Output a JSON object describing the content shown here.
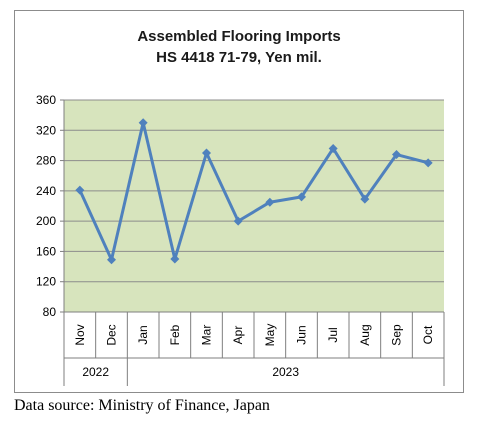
{
  "chart_data": {
    "type": "line",
    "title_lines": [
      "Assembled Flooring Imports",
      "HS 4418 71-79, Yen mil."
    ],
    "categories": [
      "Nov",
      "Dec",
      "Jan",
      "Feb",
      "Mar",
      "Apr",
      "May",
      "Jun",
      "Jul",
      "Aug",
      "Sep",
      "Oct"
    ],
    "year_groups": [
      {
        "label": "2022",
        "count": 2
      },
      {
        "label": "2023",
        "count": 10
      }
    ],
    "series": [
      {
        "values": [
          241,
          149,
          330,
          150,
          290,
          200,
          225,
          232,
          296,
          229,
          288,
          277
        ]
      }
    ],
    "ylim": [
      80,
      360
    ],
    "yticks": [
      80,
      120,
      160,
      200,
      240,
      280,
      320,
      360
    ],
    "grid": true,
    "legend": "none",
    "colors": {
      "line": "#4f81bd",
      "plot_background": "#d7e4bd",
      "grid": "#8c8c8c"
    }
  },
  "footer": {
    "source": "Data source: Ministry of Finance, Japan"
  }
}
